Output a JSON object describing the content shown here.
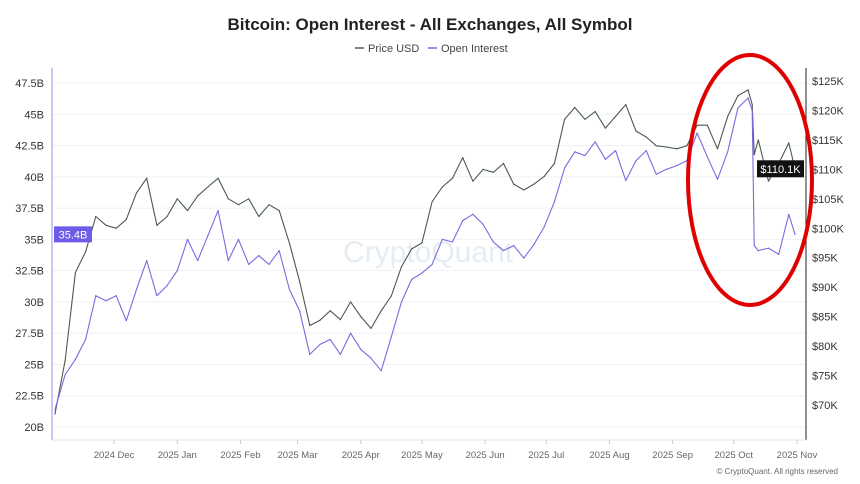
{
  "chart_data": {
    "type": "line",
    "title": "Bitcoin: Open Interest - All Exchanges, All Symbol",
    "legend": {
      "placement": "top-center",
      "entries": [
        "Price USD",
        "Open Interest"
      ]
    },
    "watermark": "CryptoQuant",
    "copyright": "© CryptoQuant. All rights reserved",
    "grid": true,
    "x_ticks": [
      {
        "label": "2024 Dec",
        "date": "2024-12-01"
      },
      {
        "label": "2025 Jan",
        "date": "2025-01-01"
      },
      {
        "label": "2025 Feb",
        "date": "2025-02-01"
      },
      {
        "label": "2025 Mar",
        "date": "2025-03-01"
      },
      {
        "label": "2025 Apr",
        "date": "2025-04-01"
      },
      {
        "label": "2025 May",
        "date": "2025-05-01"
      },
      {
        "label": "2025 Jun",
        "date": "2025-06-01"
      },
      {
        "label": "2025 Jul",
        "date": "2025-07-01"
      },
      {
        "label": "2025 Aug",
        "date": "2025-08-01"
      },
      {
        "label": "2025 Sep",
        "date": "2025-09-01"
      },
      {
        "label": "2025 Oct",
        "date": "2025-10-01"
      },
      {
        "label": "2025 Nov",
        "date": "2025-11-01"
      }
    ],
    "xlim": [
      "2024-11-02",
      "2025-11-01"
    ],
    "y_left": {
      "unit": "B",
      "ylim": [
        18.96,
        48.54
      ],
      "ticks": [
        20,
        22.5,
        25,
        27.5,
        30,
        32.5,
        35,
        37.5,
        40,
        42.5,
        45,
        47.5
      ],
      "tick_labels": [
        "20B",
        "22.5B",
        "25B",
        "27.5B",
        "30B",
        "32.5B",
        "35B",
        "37.5B",
        "40B",
        "42.5B",
        "45B",
        "47.5B"
      ],
      "current_label": "35.4B"
    },
    "y_right": {
      "unit": "K USD",
      "ylim": [
        64.06,
        126.87
      ],
      "ticks": [
        70,
        75,
        80,
        85,
        90,
        95,
        100,
        105,
        110,
        115,
        120,
        125
      ],
      "tick_labels": [
        "$70K",
        "$75K",
        "$80K",
        "$85K",
        "$90K",
        "$95K",
        "$100K",
        "$105K",
        "$110K",
        "$115K",
        "$120K",
        "$125K"
      ],
      "current_label": "$110.1K"
    },
    "x": [
      "2024-11-02",
      "2024-11-07",
      "2024-11-12",
      "2024-11-17",
      "2024-11-22",
      "2024-11-27",
      "2024-12-02",
      "2024-12-07",
      "2024-12-12",
      "2024-12-17",
      "2024-12-22",
      "2024-12-27",
      "2025-01-01",
      "2025-01-06",
      "2025-01-11",
      "2025-01-16",
      "2025-01-21",
      "2025-01-26",
      "2025-01-31",
      "2025-02-05",
      "2025-02-10",
      "2025-02-15",
      "2025-02-20",
      "2025-02-25",
      "2025-03-02",
      "2025-03-07",
      "2025-03-12",
      "2025-03-17",
      "2025-03-22",
      "2025-03-27",
      "2025-04-01",
      "2025-04-06",
      "2025-04-11",
      "2025-04-16",
      "2025-04-21",
      "2025-04-26",
      "2025-05-01",
      "2025-05-06",
      "2025-05-11",
      "2025-05-16",
      "2025-05-21",
      "2025-05-26",
      "2025-05-31",
      "2025-06-05",
      "2025-06-10",
      "2025-06-15",
      "2025-06-20",
      "2025-06-25",
      "2025-06-30",
      "2025-07-05",
      "2025-07-10",
      "2025-07-15",
      "2025-07-20",
      "2025-07-25",
      "2025-07-30",
      "2025-08-04",
      "2025-08-09",
      "2025-08-14",
      "2025-08-19",
      "2025-08-24",
      "2025-08-29",
      "2025-09-03",
      "2025-09-08",
      "2025-09-13",
      "2025-09-18",
      "2025-09-23",
      "2025-09-28",
      "2025-10-03",
      "2025-10-08",
      "2025-10-10",
      "2025-10-11",
      "2025-10-13",
      "2025-10-18",
      "2025-10-23",
      "2025-10-28",
      "2025-10-31"
    ],
    "series": [
      {
        "name": "Price USD",
        "axis": "right",
        "color": "#4b5a4e",
        "values": [
          68.5,
          77.6,
          92.5,
          96,
          102,
          100.5,
          100,
          101.5,
          106,
          108.5,
          100.5,
          102,
          105,
          103,
          105.5,
          107,
          108.5,
          105,
          104,
          105,
          102,
          104,
          103,
          97.5,
          91,
          83.5,
          84.4,
          86,
          84.5,
          87.5,
          85,
          83,
          86,
          88.5,
          93.5,
          96.5,
          97.5,
          104.5,
          107,
          108.5,
          112,
          108,
          110,
          109.5,
          111,
          107.5,
          106.5,
          107.5,
          108.8,
          111,
          118.5,
          120.5,
          118.5,
          119.8,
          117,
          119,
          121,
          116.5,
          115.5,
          114,
          113.8,
          113.5,
          114,
          117.5,
          117.5,
          113.5,
          119,
          122.5,
          123.5,
          121,
          112.5,
          115,
          108,
          111,
          114.5,
          110.1
        ]
      },
      {
        "name": "Open Interest",
        "axis": "left",
        "color": "#7a6ae0",
        "values": [
          21.4,
          24.2,
          25.4,
          27,
          30.5,
          30.1,
          30.5,
          28.5,
          31,
          33.3,
          30.5,
          31.3,
          32.5,
          35,
          33.3,
          35.3,
          37.3,
          33.3,
          35,
          33,
          33.7,
          33,
          34.1,
          31,
          29.3,
          25.8,
          26.6,
          27,
          25.8,
          27.5,
          26.2,
          25.5,
          24.5,
          27.2,
          30,
          31.8,
          32.3,
          33,
          35,
          34.8,
          36.5,
          37,
          36.2,
          34.8,
          34.1,
          34.5,
          33.5,
          34.6,
          36,
          38,
          40.7,
          42,
          41.7,
          42.8,
          41.4,
          42.1,
          39.7,
          41.3,
          42.1,
          40.2,
          40.6,
          40.9,
          41.3,
          43.5,
          41.6,
          39.8,
          42,
          45.5,
          46.3,
          45.3,
          34.5,
          34.1,
          34.3,
          33.8,
          37,
          35.4
        ]
      }
    ],
    "annotation": {
      "shape": "ellipse",
      "color": "#e00000",
      "highlights": "2025 Oct"
    }
  }
}
